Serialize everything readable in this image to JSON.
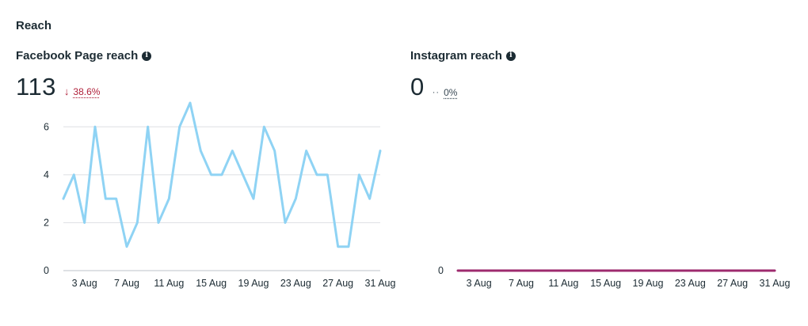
{
  "section": {
    "title": "Reach"
  },
  "colors": {
    "facebook_line": "#8fd3f4",
    "instagram_line": "#9e2a6e",
    "grid": "#dddfe2",
    "axis": "#bec3c9",
    "delta_down": "#b0213a"
  },
  "facebook": {
    "title": "Facebook Page reach",
    "info_icon": "info-icon",
    "value": "113",
    "delta_icon": "arrow-down-icon",
    "delta_text": "38.6%"
  },
  "instagram": {
    "title": "Instagram reach",
    "info_icon": "info-icon",
    "value": "0",
    "delta_icon": "neutral-dots-icon",
    "delta_text": "0%"
  },
  "chart_data": [
    {
      "type": "line",
      "series": [
        {
          "values": [
            3,
            4,
            2,
            6,
            3,
            3,
            1,
            2,
            6,
            2,
            3,
            6,
            7,
            5,
            4,
            4,
            5,
            4,
            3,
            6,
            5,
            2,
            3,
            5,
            4,
            4,
            1,
            1,
            4,
            3,
            5
          ]
        }
      ],
      "x_tick_labels": [
        "3 Aug",
        "7 Aug",
        "11 Aug",
        "15 Aug",
        "19 Aug",
        "23 Aug",
        "27 Aug",
        "31 Aug"
      ],
      "y_tick_labels": [
        "0",
        "2",
        "4",
        "6"
      ],
      "ylim": [
        0,
        7
      ],
      "grid": true
    },
    {
      "type": "line",
      "series": [
        {
          "values": [
            0,
            0,
            0,
            0,
            0,
            0,
            0,
            0,
            0,
            0,
            0,
            0,
            0,
            0,
            0,
            0,
            0,
            0,
            0,
            0,
            0,
            0,
            0,
            0,
            0,
            0,
            0,
            0,
            0,
            0,
            0
          ]
        }
      ],
      "x_tick_labels": [
        "3 Aug",
        "7 Aug",
        "11 Aug",
        "15 Aug",
        "19 Aug",
        "23 Aug",
        "27 Aug",
        "31 Aug"
      ],
      "y_tick_labels": [
        "0"
      ],
      "ylim": [
        0,
        7
      ],
      "grid": false
    }
  ]
}
